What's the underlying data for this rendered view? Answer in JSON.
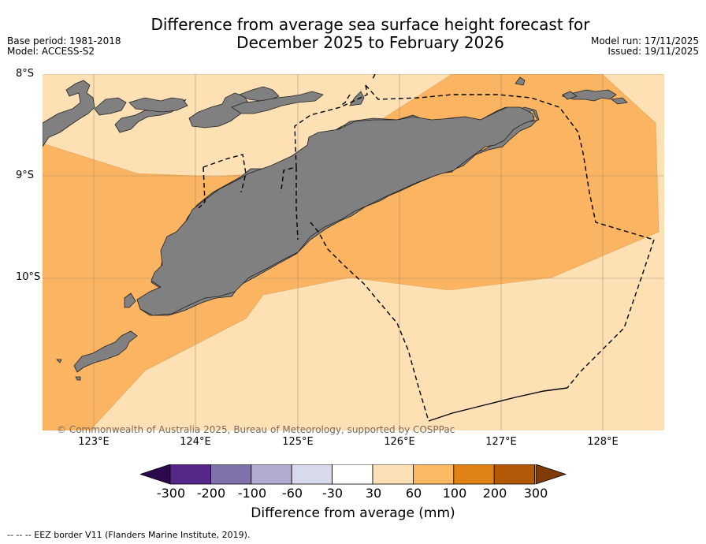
{
  "title_line1": "Difference from average sea surface height forecast for",
  "title_line2": "December 2025 to February 2026",
  "base_period": "Base period: 1981-2018",
  "model": "Model: ACCESS-S2",
  "model_run": "Model run: 17/11/2025",
  "issued": "Issued: 19/11/2025",
  "lat_labels": [
    "8°S",
    "9°S",
    "10°S"
  ],
  "lon_labels": [
    "123°E",
    "124°E",
    "125°E",
    "126°E",
    "127°E",
    "128°E"
  ],
  "copyright": "© Commonwealth of Australia 2025, Bureau of Meteorology, supported by COSPPac",
  "colorbar": {
    "ticks": [
      "-300",
      "-200",
      "-100",
      "-60",
      "-30",
      "30",
      "60",
      "100",
      "200",
      "300"
    ],
    "colors": [
      "#2d0a4e",
      "#542788",
      "#8073ac",
      "#b2abd2",
      "#d8daeb",
      "#ffffff",
      "#fee0b6",
      "#fdb863",
      "#e08214",
      "#b35806",
      "#7f3b08"
    ],
    "label": "Difference from average (mm)"
  },
  "footer": "--  --  -- EEZ border V11 (Flanders Marine Institute, 2019).",
  "map_colors": {
    "light": "#fde0b3",
    "mid": "#fbb462",
    "land": "#808080"
  }
}
